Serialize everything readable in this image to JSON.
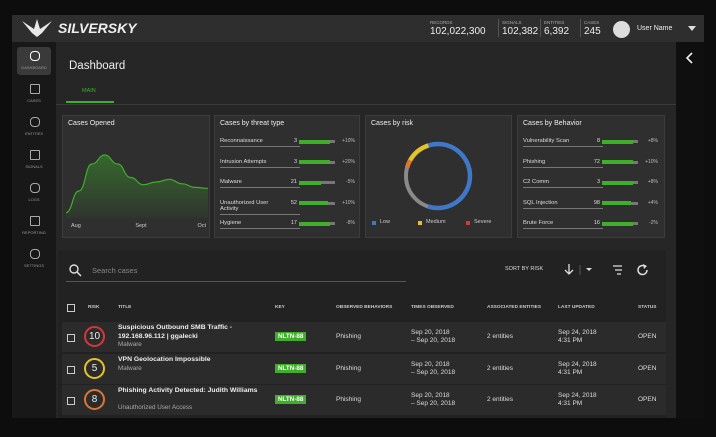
{
  "header": {
    "brand": "SILVERSKY",
    "stats": [
      {
        "label": "RECORDS",
        "value": "102,022,300"
      },
      {
        "label": "SIGNALS",
        "value": "102,382"
      },
      {
        "label": "ENTITIES",
        "value": "6,392"
      },
      {
        "label": "CASES",
        "value": "245"
      }
    ],
    "user": "User Name"
  },
  "sidebar": [
    "DASHBOARD",
    "CASES",
    "ENTITIES",
    "SIGNALS",
    "LOGS",
    "REPORTING",
    "SETTINGS"
  ],
  "page": {
    "title": "Dashboard",
    "tab": "MAIN"
  },
  "cases_opened": {
    "chart_data": {
      "type": "area",
      "title": "Cases Opened",
      "color": "#3fae2a",
      "values": [
        6,
        30,
        60,
        70,
        60,
        45,
        37,
        40,
        43,
        38,
        34,
        33
      ],
      "x_labels": [
        "Aug",
        "Sept",
        "Oct"
      ]
    }
  },
  "threat_type": {
    "title": "Cases by threat type",
    "rows": [
      {
        "name": "Reconnaissance",
        "count": "3",
        "fill": 85,
        "change": "+10%"
      },
      {
        "name": "Intrusion Attempts",
        "count": "3",
        "fill": 85,
        "change": "+20%"
      },
      {
        "name": "Malware",
        "count": "21",
        "fill": 60,
        "change": "-5%"
      },
      {
        "name": "Unauthorized User Activity",
        "count": "52",
        "fill": 80,
        "change": "+10%"
      },
      {
        "name": "Hygiene",
        "count": "17",
        "fill": 85,
        "change": "-8%"
      }
    ]
  },
  "risk": {
    "chart_data": {
      "type": "donut",
      "title": "Cases by risk",
      "track_color": "#8a8a8a",
      "series": [
        {
          "name": "Severe",
          "color": "#e0752b",
          "value": 4
        },
        {
          "name": "Medium",
          "color": "#e6c229",
          "value": 12
        },
        {
          "name": "Low",
          "color": "#3f78c9",
          "value": 60
        }
      ],
      "legend_colors": {
        "Low": "#3f78c9",
        "Medium": "#e6c229",
        "Severe": "#d23a3a"
      }
    }
  },
  "behavior": {
    "title": "Cases by Behavior",
    "rows": [
      {
        "name": "Vulnerability Scan",
        "count": "8",
        "fill": 85,
        "change": "+8%"
      },
      {
        "name": "Phishing",
        "count": "72",
        "fill": 85,
        "change": "+10%"
      },
      {
        "name": "C2 Comm",
        "count": "3",
        "fill": 85,
        "change": "+8%"
      },
      {
        "name": "SQL Injection",
        "count": "98",
        "fill": 80,
        "change": "+4%"
      },
      {
        "name": "Brute Force",
        "count": "16",
        "fill": 85,
        "change": "-2%"
      }
    ]
  },
  "table": {
    "search_placeholder": "Search cases",
    "sort": "SORT BY RISK",
    "columns": [
      "RISK",
      "TITLE",
      "KEY",
      "OBSERVED BEHAVIORS",
      "TIMES OBSERVED",
      "ASSOCIATED ENTITIES",
      "LAST UPDATED",
      "STATUS"
    ],
    "rows": [
      {
        "risk": "10",
        "risk_color": "#d23a3a",
        "title": "Suspicious Outbound SMB Traffic - 192.168.96.112 | ggalecki",
        "subtitle": "Malware",
        "key": "NLTN-88",
        "behavior": "Phishing",
        "times": [
          "Sep 20, 2018",
          "– Sep 20, 2018"
        ],
        "entities": "2 entities",
        "updated": [
          "Sep 24, 2018",
          "4:31 PM"
        ],
        "status": "OPEN"
      },
      {
        "risk": "5",
        "risk_color": "#e6c229",
        "title": "VPN Geolocation Impossible",
        "subtitle": "Malware",
        "key": "NLTN-88",
        "behavior": "Phishing",
        "times": [
          "Sep 20, 2018",
          "– Sep 20, 2018"
        ],
        "entities": "2 entities",
        "updated": [
          "Sep 24, 2018",
          "4:31 PM"
        ],
        "status": "OPEN"
      },
      {
        "risk": "8",
        "risk_color": "#e0752b",
        "title": "Phishing Activity Detected: Judith Williams",
        "subtitle": "Unauthorized User Access",
        "key": "NLTN-88",
        "behavior": "Phishing",
        "times": [
          "Sep 20, 2018",
          "– Sep 20, 2018"
        ],
        "entities": "2 entities",
        "updated": [
          "Sep 24, 2018",
          "4:31 PM"
        ],
        "status": "OPEN"
      }
    ]
  }
}
